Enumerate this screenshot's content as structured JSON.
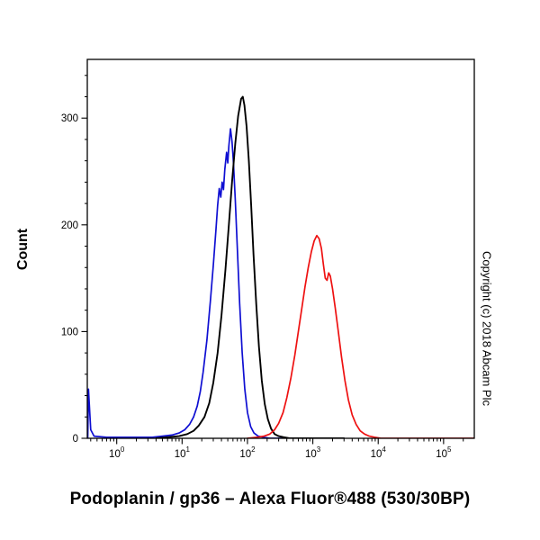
{
  "page": {
    "caption": "Podoplanin / gp36 – Alexa Fluor®488 (530/30BP)",
    "copyright": "Copyright (c) 2018 Abcam Plc"
  },
  "chart_data": {
    "type": "line",
    "subtype": "flow-cytometry-histogram",
    "title": "",
    "xlabel": "",
    "ylabel": "Count",
    "x_scale": "log10",
    "grid": false,
    "legend": "none",
    "x_axis": {
      "min_log": -0.45,
      "max_log": 5.47,
      "major_tick_exponents": [
        0,
        1,
        2,
        3,
        4,
        5
      ],
      "minor_ticks": "2-9 per decade"
    },
    "y_axis": {
      "min": 0,
      "max": 355,
      "major_ticks": [
        0,
        100,
        200,
        300
      ],
      "minor_tick_step": 20
    },
    "series": [
      {
        "name": "blue-curve",
        "color": "#0f0fd2",
        "points": [
          [
            0.36,
            0
          ],
          [
            0.37,
            46
          ],
          [
            0.4,
            8
          ],
          [
            0.45,
            2
          ],
          [
            0.7,
            1
          ],
          [
            1.2,
            1
          ],
          [
            2,
            1
          ],
          [
            3.5,
            1
          ],
          [
            5,
            2
          ],
          [
            7,
            3
          ],
          [
            9,
            5
          ],
          [
            11,
            8
          ],
          [
            13,
            13
          ],
          [
            15,
            20
          ],
          [
            17,
            30
          ],
          [
            19,
            44
          ],
          [
            21,
            62
          ],
          [
            24,
            92
          ],
          [
            27,
            128
          ],
          [
            30,
            162
          ],
          [
            33,
            196
          ],
          [
            35,
            218
          ],
          [
            37,
            234
          ],
          [
            39,
            226
          ],
          [
            41,
            240
          ],
          [
            43,
            233
          ],
          [
            45,
            252
          ],
          [
            48,
            268
          ],
          [
            50,
            258
          ],
          [
            52,
            274
          ],
          [
            55,
            290
          ],
          [
            58,
            278
          ],
          [
            61,
            258
          ],
          [
            65,
            224
          ],
          [
            70,
            178
          ],
          [
            76,
            126
          ],
          [
            83,
            80
          ],
          [
            91,
            46
          ],
          [
            100,
            24
          ],
          [
            112,
            11
          ],
          [
            126,
            5
          ],
          [
            145,
            2
          ],
          [
            175,
            1
          ],
          [
            220,
            0
          ],
          [
            3000,
            0
          ]
        ]
      },
      {
        "name": "black-curve",
        "color": "#000000",
        "points": [
          [
            4,
            0
          ],
          [
            6,
            1
          ],
          [
            9,
            2
          ],
          [
            12,
            4
          ],
          [
            15,
            7
          ],
          [
            18,
            12
          ],
          [
            22,
            20
          ],
          [
            26,
            33
          ],
          [
            30,
            52
          ],
          [
            35,
            80
          ],
          [
            40,
            115
          ],
          [
            46,
            158
          ],
          [
            52,
            200
          ],
          [
            58,
            240
          ],
          [
            65,
            276
          ],
          [
            72,
            302
          ],
          [
            80,
            318
          ],
          [
            85,
            320
          ],
          [
            90,
            312
          ],
          [
            97,
            292
          ],
          [
            105,
            260
          ],
          [
            114,
            218
          ],
          [
            124,
            172
          ],
          [
            136,
            126
          ],
          [
            150,
            86
          ],
          [
            166,
            54
          ],
          [
            184,
            32
          ],
          [
            205,
            18
          ],
          [
            230,
            9
          ],
          [
            260,
            4
          ],
          [
            300,
            2
          ],
          [
            360,
            1
          ],
          [
            450,
            0
          ],
          [
            3000,
            0
          ]
        ]
      },
      {
        "name": "red-curve",
        "color": "#ee1111",
        "points": [
          [
            100,
            0
          ],
          [
            140,
            1
          ],
          [
            180,
            2
          ],
          [
            220,
            4
          ],
          [
            260,
            8
          ],
          [
            300,
            14
          ],
          [
            350,
            24
          ],
          [
            400,
            38
          ],
          [
            460,
            56
          ],
          [
            530,
            78
          ],
          [
            600,
            100
          ],
          [
            680,
            122
          ],
          [
            760,
            142
          ],
          [
            850,
            160
          ],
          [
            950,
            175
          ],
          [
            1050,
            185
          ],
          [
            1150,
            190
          ],
          [
            1250,
            187
          ],
          [
            1350,
            178
          ],
          [
            1450,
            163
          ],
          [
            1550,
            150
          ],
          [
            1650,
            148
          ],
          [
            1750,
            155
          ],
          [
            1850,
            152
          ],
          [
            2000,
            140
          ],
          [
            2200,
            122
          ],
          [
            2450,
            100
          ],
          [
            2750,
            76
          ],
          [
            3100,
            54
          ],
          [
            3500,
            36
          ],
          [
            4000,
            22
          ],
          [
            4600,
            13
          ],
          [
            5300,
            7
          ],
          [
            6200,
            4
          ],
          [
            7300,
            2
          ],
          [
            8800,
            1
          ],
          [
            11000,
            0
          ],
          [
            300000,
            0
          ]
        ]
      }
    ]
  }
}
